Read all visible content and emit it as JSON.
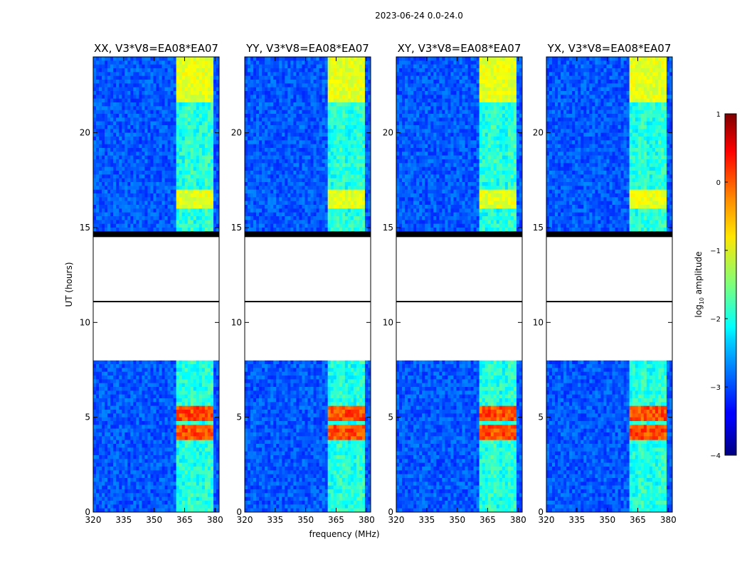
{
  "figure_title": "2023-06-24 0.0-24.0",
  "chart_data": [
    {
      "type": "heatmap",
      "title": "XX, V3*V8=EA08*EA07",
      "polarization": "XX",
      "baseline": "V3*V8=EA08*EA07",
      "xlabel": "frequency (MHz)",
      "ylabel": "UT (hours)",
      "xlim": [
        320,
        382
      ],
      "ylim": [
        0,
        24
      ],
      "xticks": [
        320,
        335,
        350,
        365,
        380
      ],
      "yticks": [
        0,
        5,
        10,
        15,
        20
      ],
      "rfi_band_mhz": [
        361,
        379
      ],
      "no_data_hours": [
        [
          8.0,
          11.1
        ],
        [
          11.1,
          14.5
        ]
      ],
      "strong_rfi_hours": [
        [
          3.8,
          4.6
        ],
        [
          4.9,
          5.5
        ]
      ],
      "strong_rfi_level": 0.3
    },
    {
      "type": "heatmap",
      "title": "YY, V3*V8=EA08*EA07",
      "polarization": "YY",
      "baseline": "V3*V8=EA08*EA07",
      "xlabel": "frequency (MHz)",
      "ylabel": "UT (hours)",
      "xlim": [
        320,
        382
      ],
      "ylim": [
        0,
        24
      ],
      "xticks": [
        320,
        335,
        350,
        365,
        380
      ],
      "yticks": [
        0,
        5,
        10,
        15,
        20
      ],
      "rfi_band_mhz": [
        361,
        379
      ],
      "no_data_hours": [
        [
          8.0,
          11.1
        ],
        [
          11.1,
          14.5
        ]
      ],
      "strong_rfi_hours": [
        [
          3.8,
          4.6
        ],
        [
          4.9,
          5.5
        ]
      ],
      "strong_rfi_level": 0.3
    },
    {
      "type": "heatmap",
      "title": "XY, V3*V8=EA08*EA07",
      "polarization": "XY",
      "baseline": "V3*V8=EA08*EA07",
      "xlabel": "frequency (MHz)",
      "ylabel": "UT (hours)",
      "xlim": [
        320,
        382
      ],
      "ylim": [
        0,
        24
      ],
      "xticks": [
        320,
        335,
        350,
        365,
        380
      ],
      "yticks": [
        0,
        5,
        10,
        15,
        20
      ],
      "rfi_band_mhz": [
        361,
        379
      ],
      "no_data_hours": [
        [
          8.0,
          11.1
        ],
        [
          11.1,
          14.5
        ]
      ],
      "strong_rfi_hours": [
        [
          3.8,
          4.6
        ],
        [
          4.9,
          5.5
        ]
      ],
      "strong_rfi_level": 0.3
    },
    {
      "type": "heatmap",
      "title": "YX, V3*V8=EA08*EA07",
      "polarization": "YX",
      "baseline": "V3*V8=EA08*EA07",
      "xlabel": "frequency (MHz)",
      "ylabel": "UT (hours)",
      "xlim": [
        320,
        382
      ],
      "ylim": [
        0,
        24
      ],
      "xticks": [
        320,
        335,
        350,
        365,
        380
      ],
      "yticks": [
        0,
        5,
        10,
        15,
        20
      ],
      "rfi_band_mhz": [
        361,
        379
      ],
      "no_data_hours": [
        [
          8.0,
          11.1
        ],
        [
          11.1,
          14.5
        ]
      ],
      "strong_rfi_hours": [
        [
          3.8,
          4.6
        ],
        [
          4.9,
          5.5
        ]
      ],
      "strong_rfi_level": 0.3
    }
  ],
  "colorbar": {
    "label": "log10 amplitude",
    "label_main": "log",
    "label_sub": "10",
    "label_rest": " amplitude",
    "min": -4,
    "max": 1,
    "ticks": [
      1,
      0,
      -1,
      -2,
      -3,
      -4
    ],
    "tick_labels": [
      "1",
      "0",
      "−1",
      "−2",
      "−3",
      "−4"
    ],
    "colormap": "jet"
  },
  "shared_xlabel": "frequency (MHz)",
  "shared_ylabel": "UT (hours)"
}
